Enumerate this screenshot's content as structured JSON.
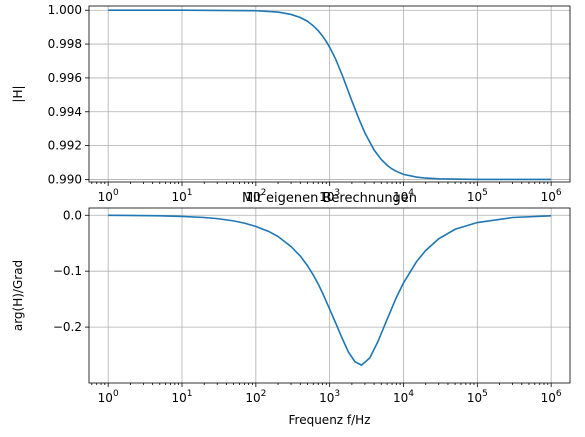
{
  "chart_data": [
    {
      "type": "line",
      "title": "",
      "xlabel": "",
      "ylabel": "|H|",
      "xscale": "log",
      "xlim": [
        0.55,
        1800000
      ],
      "ylim": [
        0.98985,
        1.00025
      ],
      "xticks": [
        1,
        10,
        100,
        1000,
        10000,
        100000,
        1000000
      ],
      "xtick_labels": [
        "10^0",
        "10^1",
        "10^2",
        "10^3",
        "10^4",
        "10^5",
        "10^6"
      ],
      "yticks": [
        0.99,
        0.992,
        0.994,
        0.996,
        0.998,
        1.0
      ],
      "ytick_labels": [
        "0.990",
        "0.992",
        "0.994",
        "0.996",
        "0.998",
        "1.000"
      ],
      "grid": true,
      "line_color": "#1f77b4",
      "series": [
        {
          "x": [
            1,
            10,
            100,
            200,
            300,
            400,
            500,
            600,
            700,
            800,
            900,
            1000,
            1200,
            1500,
            2000,
            2500,
            3000,
            4000,
            5000,
            6000,
            7000,
            8000,
            10000,
            15000,
            20000,
            30000,
            100000,
            1000000
          ],
          "values": [
            1.0,
            1.0,
            0.99997,
            0.99989,
            0.99975,
            0.99957,
            0.99935,
            0.99908,
            0.99879,
            0.99848,
            0.99815,
            0.99781,
            0.99713,
            0.9961,
            0.99464,
            0.99356,
            0.99275,
            0.99174,
            0.99118,
            0.99084,
            0.99062,
            0.99048,
            0.9903,
            0.99014,
            0.99008,
            0.99004,
            0.99,
            0.99
          ]
        }
      ]
    },
    {
      "type": "line",
      "title": "Mit eigenen Berechnungen",
      "xlabel": "Frequenz f/Hz",
      "ylabel": "arg(H)/Grad",
      "xscale": "log",
      "xlim": [
        0.55,
        1800000
      ],
      "ylim": [
        -0.3,
        0.013
      ],
      "xticks": [
        1,
        10,
        100,
        1000,
        10000,
        100000,
        1000000
      ],
      "xtick_labels": [
        "10^0",
        "10^1",
        "10^2",
        "10^3",
        "10^4",
        "10^5",
        "10^6"
      ],
      "yticks": [
        -0.2,
        -0.1,
        0.0
      ],
      "ytick_labels": [
        "−0.2",
        "−0.1",
        "0.0"
      ],
      "grid": true,
      "line_color": "#1f77b4",
      "series": [
        {
          "x": [
            1,
            5,
            10,
            20,
            30,
            50,
            70,
            100,
            150,
            200,
            300,
            400,
            500,
            600,
            700,
            800,
            1000,
            1200,
            1500,
            1800,
            2200,
            2700,
            3500,
            4500,
            6000,
            8000,
            10000,
            15000,
            20000,
            30000,
            50000,
            100000,
            300000,
            1000000
          ],
          "values": [
            0.0,
            -0.001,
            -0.002,
            -0.004,
            -0.006,
            -0.01,
            -0.014,
            -0.02,
            -0.029,
            -0.038,
            -0.056,
            -0.073,
            -0.09,
            -0.107,
            -0.123,
            -0.139,
            -0.168,
            -0.192,
            -0.222,
            -0.245,
            -0.262,
            -0.268,
            -0.255,
            -0.226,
            -0.186,
            -0.147,
            -0.121,
            -0.083,
            -0.063,
            -0.042,
            -0.025,
            -0.013,
            -0.004,
            -0.001
          ]
        }
      ]
    }
  ]
}
